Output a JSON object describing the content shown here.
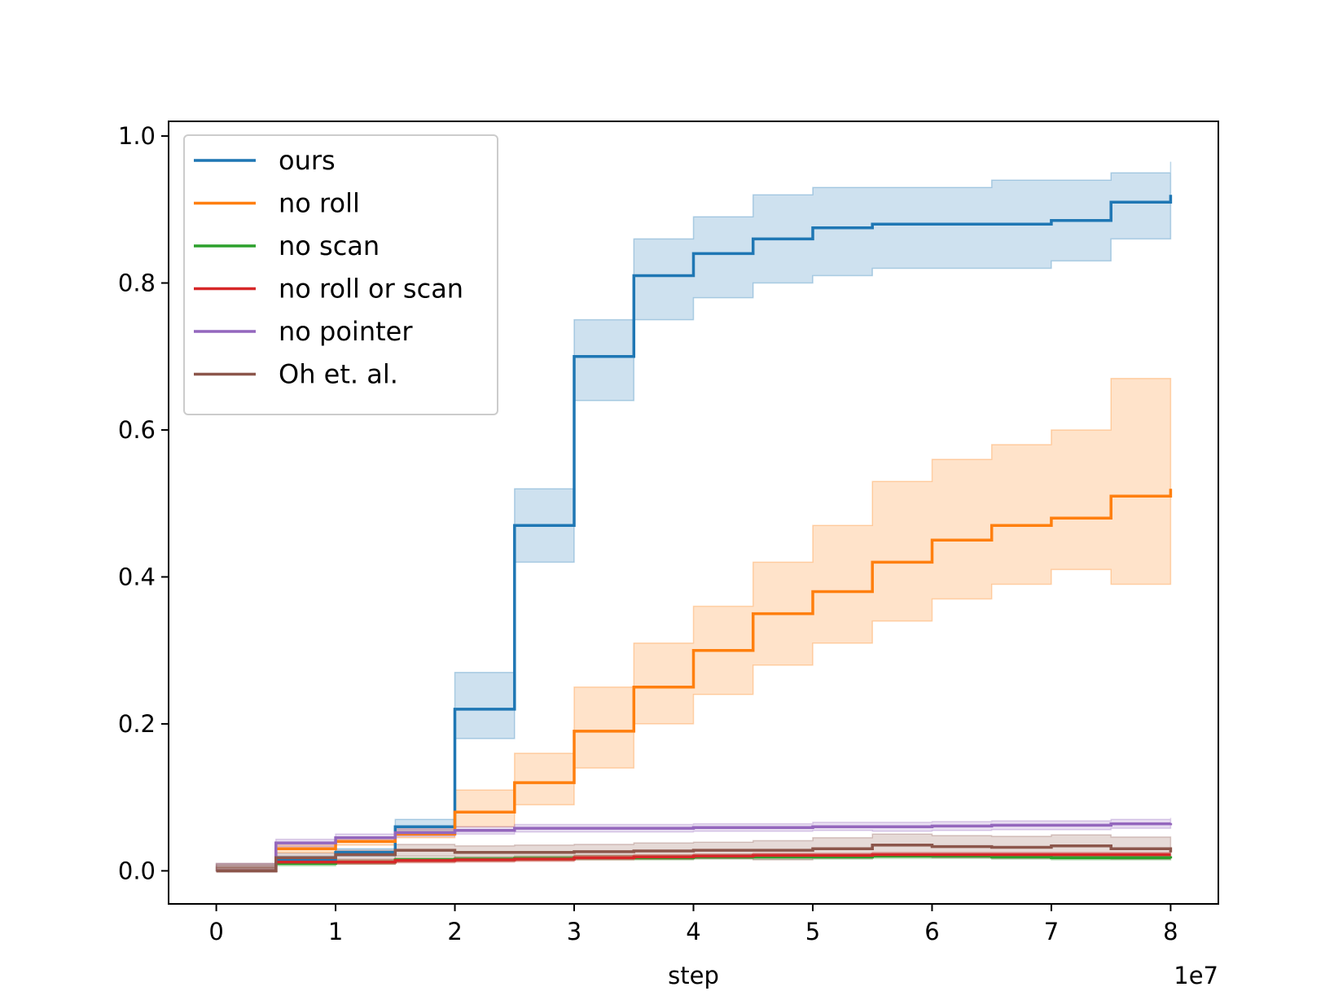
{
  "chart_data": {
    "type": "line",
    "title": "",
    "xlabel": "step",
    "ylabel": "",
    "x_offset_label": "1e7",
    "xlim": [
      -0.4,
      8.4
    ],
    "ylim": [
      -0.045,
      1.02
    ],
    "x_ticks": [
      0,
      1,
      2,
      3,
      4,
      5,
      6,
      7,
      8
    ],
    "x_tick_labels": [
      "0",
      "1",
      "2",
      "3",
      "4",
      "5",
      "6",
      "7",
      "8"
    ],
    "y_ticks": [
      0.0,
      0.2,
      0.4,
      0.6,
      0.8,
      1.0
    ],
    "y_tick_labels": [
      "0.0",
      "0.2",
      "0.4",
      "0.6",
      "0.8",
      "1.0"
    ],
    "grid": false,
    "legend_position": "top-left",
    "x": [
      0,
      0.5,
      1,
      1.5,
      2,
      2.5,
      3,
      3.5,
      4,
      4.5,
      5,
      5.5,
      6,
      6.5,
      7,
      7.5,
      8
    ],
    "series": [
      {
        "name": "ours",
        "color": "#1f77b4",
        "values": [
          0.0,
          0.015,
          0.025,
          0.06,
          0.22,
          0.47,
          0.7,
          0.81,
          0.84,
          0.86,
          0.875,
          0.88,
          0.88,
          0.88,
          0.885,
          0.91,
          0.92
        ],
        "lower": [
          0.0,
          0.01,
          0.02,
          0.05,
          0.18,
          0.42,
          0.64,
          0.75,
          0.78,
          0.8,
          0.81,
          0.82,
          0.82,
          0.82,
          0.83,
          0.86,
          0.875
        ],
        "upper": [
          0.01,
          0.02,
          0.03,
          0.07,
          0.27,
          0.52,
          0.75,
          0.86,
          0.89,
          0.92,
          0.93,
          0.93,
          0.93,
          0.94,
          0.94,
          0.95,
          0.965
        ]
      },
      {
        "name": "no roll",
        "color": "#ff7f0e",
        "values": [
          0.0,
          0.03,
          0.04,
          0.05,
          0.08,
          0.12,
          0.19,
          0.25,
          0.3,
          0.35,
          0.38,
          0.42,
          0.45,
          0.47,
          0.48,
          0.51,
          0.52
        ],
        "lower": [
          0.0,
          0.025,
          0.035,
          0.045,
          0.06,
          0.09,
          0.14,
          0.2,
          0.24,
          0.28,
          0.31,
          0.34,
          0.37,
          0.39,
          0.41,
          0.39,
          0.4
        ],
        "upper": [
          0.01,
          0.035,
          0.045,
          0.06,
          0.11,
          0.16,
          0.25,
          0.31,
          0.36,
          0.42,
          0.47,
          0.53,
          0.56,
          0.58,
          0.6,
          0.67,
          0.67
        ]
      },
      {
        "name": "no scan",
        "color": "#2ca02c",
        "values": [
          0.0,
          0.01,
          0.012,
          0.015,
          0.016,
          0.017,
          0.018,
          0.018,
          0.019,
          0.019,
          0.019,
          0.02,
          0.02,
          0.019,
          0.018,
          0.018,
          0.017
        ],
        "lower": [
          0.0,
          0.007,
          0.009,
          0.012,
          0.013,
          0.014,
          0.015,
          0.015,
          0.016,
          0.016,
          0.016,
          0.017,
          0.017,
          0.016,
          0.015,
          0.015,
          0.014
        ],
        "upper": [
          0.005,
          0.013,
          0.015,
          0.018,
          0.019,
          0.02,
          0.021,
          0.021,
          0.022,
          0.022,
          0.022,
          0.023,
          0.023,
          0.022,
          0.021,
          0.021,
          0.02
        ]
      },
      {
        "name": "no roll or scan",
        "color": "#d62728",
        "values": [
          0.0,
          0.012,
          0.012,
          0.014,
          0.015,
          0.016,
          0.018,
          0.019,
          0.02,
          0.021,
          0.021,
          0.022,
          0.022,
          0.022,
          0.022,
          0.022,
          0.022
        ],
        "lower": [
          0.0,
          0.009,
          0.009,
          0.011,
          0.012,
          0.013,
          0.015,
          0.016,
          0.017,
          0.018,
          0.018,
          0.019,
          0.019,
          0.019,
          0.019,
          0.019,
          0.019
        ],
        "upper": [
          0.005,
          0.015,
          0.015,
          0.017,
          0.018,
          0.019,
          0.021,
          0.022,
          0.023,
          0.024,
          0.024,
          0.025,
          0.025,
          0.025,
          0.025,
          0.025,
          0.025
        ]
      },
      {
        "name": "no pointer",
        "color": "#9467bd",
        "values": [
          0.0,
          0.038,
          0.045,
          0.052,
          0.055,
          0.058,
          0.058,
          0.058,
          0.059,
          0.059,
          0.06,
          0.06,
          0.061,
          0.062,
          0.062,
          0.064,
          0.065
        ],
        "lower": [
          0.0,
          0.033,
          0.04,
          0.047,
          0.05,
          0.053,
          0.053,
          0.053,
          0.054,
          0.054,
          0.055,
          0.054,
          0.055,
          0.056,
          0.056,
          0.058,
          0.058
        ],
        "upper": [
          0.01,
          0.043,
          0.05,
          0.057,
          0.06,
          0.063,
          0.063,
          0.063,
          0.064,
          0.064,
          0.066,
          0.066,
          0.067,
          0.068,
          0.068,
          0.07,
          0.072
        ]
      },
      {
        "name": "Oh et. al.",
        "color": "#8c564b",
        "values": [
          0.0,
          0.018,
          0.022,
          0.028,
          0.025,
          0.025,
          0.026,
          0.027,
          0.028,
          0.028,
          0.03,
          0.035,
          0.033,
          0.032,
          0.034,
          0.03,
          0.025
        ],
        "lower": [
          0.0,
          0.012,
          0.016,
          0.02,
          0.016,
          0.015,
          0.016,
          0.016,
          0.017,
          0.015,
          0.017,
          0.02,
          0.018,
          0.017,
          0.019,
          0.016,
          0.015
        ],
        "upper": [
          0.008,
          0.024,
          0.028,
          0.036,
          0.034,
          0.035,
          0.036,
          0.038,
          0.039,
          0.041,
          0.045,
          0.05,
          0.048,
          0.047,
          0.049,
          0.046,
          0.04
        ]
      }
    ]
  }
}
